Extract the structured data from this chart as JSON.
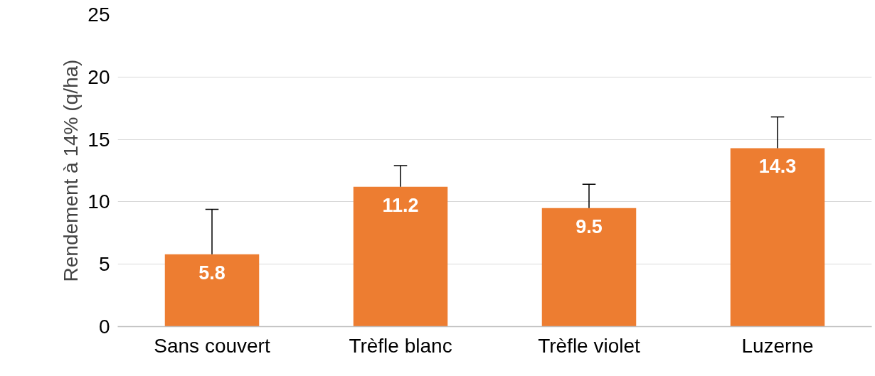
{
  "chart_data": {
    "type": "bar",
    "ylabel": "Rendement à 14% (q/ha)",
    "categories": [
      "Sans couvert",
      "Trèfle blanc",
      "Trèfle violet",
      "Luzerne"
    ],
    "values": [
      5.8,
      11.2,
      9.5,
      14.3
    ],
    "errors": [
      [
        5.8,
        9.4
      ],
      [
        11.2,
        12.9
      ],
      [
        9.5,
        11.4
      ],
      [
        14.3,
        16.8
      ]
    ],
    "color": "#ed7d31",
    "ylim": [
      0,
      25
    ],
    "yticks": [
      0,
      5,
      10,
      15,
      20,
      25
    ],
    "grid": "y",
    "data_labels": true
  }
}
